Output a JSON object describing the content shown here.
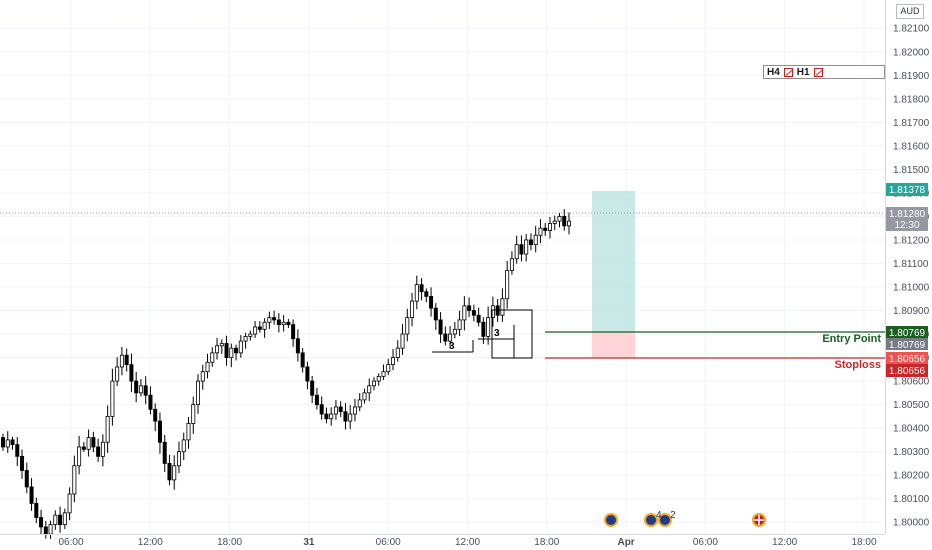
{
  "currency": "AUD",
  "timeframes": [
    "H4",
    "H1"
  ],
  "y_axis_ticks": [
    "1.82100",
    "1.82000",
    "1.81900",
    "1.81800",
    "1.81700",
    "1.81600",
    "1.81500",
    "1.81400",
    "1.81300",
    "1.81200",
    "1.81100",
    "1.81000",
    "1.80900",
    "1.80800",
    "1.80700",
    "1.80600",
    "1.80500",
    "1.80400",
    "1.80300",
    "1.80200",
    "1.80100",
    "1.80000"
  ],
  "x_axis_ticks": [
    "06:00",
    "12:00",
    "18:00",
    "31",
    "06:00",
    "12:00",
    "18:00",
    "Apr",
    "06:00",
    "12:00",
    "18:00"
  ],
  "price_tags": {
    "target": "1.81378",
    "current": "1.81280",
    "countdown": "12:30",
    "entry_a": "1.80769",
    "entry_b": "1.80769",
    "stop_a": "1.80656",
    "stop_b": "1.80656"
  },
  "annotations": {
    "entry_label": "Entry Point",
    "stop_label": "Stoploss",
    "box1_count": "3",
    "box2_count": "3",
    "event_count": "4",
    "event_count2": "2"
  },
  "colors": {
    "bull": "#ffffff",
    "bear": "#000000",
    "target_tag": "#26a69a",
    "current_tag": "#9598a1",
    "entry_line": "#1b5e20",
    "stop_line": "#c62828",
    "profit_zone": "#b2dfdb",
    "loss_zone": "#ffcdd2"
  },
  "chart_data": {
    "type": "candlestick",
    "ylim": [
      1.7995,
      1.8222
    ],
    "x_labels": [
      "06:00",
      "12:00",
      "18:00",
      "31",
      "06:00",
      "12:00",
      "18:00",
      "Apr",
      "06:00",
      "12:00",
      "18:00"
    ],
    "levels": {
      "target": 1.81378,
      "current": 1.8128,
      "entry": 1.80769,
      "stop": 1.80656
    },
    "closes": [
      1.8032,
      1.8035,
      1.8033,
      1.8028,
      1.8022,
      1.8015,
      1.8008,
      1.8002,
      1.7998,
      1.7995,
      1.7999,
      1.8003,
      1.7999,
      1.8004,
      1.8012,
      1.8024,
      1.8032,
      1.8031,
      1.8036,
      1.8032,
      1.8028,
      1.8034,
      1.8045,
      1.806,
      1.8066,
      1.8071,
      1.8067,
      1.806,
      1.8055,
      1.8058,
      1.8054,
      1.8048,
      1.8043,
      1.8034,
      1.8025,
      1.8018,
      1.8024,
      1.803,
      1.8035,
      1.8042,
      1.805,
      1.806,
      1.8064,
      1.8068,
      1.8072,
      1.8075,
      1.8076,
      1.807,
      1.8074,
      1.8072,
      1.8077,
      1.8079,
      1.808,
      1.8083,
      1.8082,
      1.8085,
      1.8087,
      1.8086,
      1.8084,
      1.8085,
      1.8084,
      1.8078,
      1.8072,
      1.8066,
      1.806,
      1.8054,
      1.805,
      1.8046,
      1.8044,
      1.8046,
      1.8049,
      1.8047,
      1.8043,
      1.8046,
      1.8049,
      1.8052,
      1.8055,
      1.8058,
      1.806,
      1.8062,
      1.8064,
      1.8067,
      1.807,
      1.8074,
      1.808,
      1.8087,
      1.8094,
      1.8101,
      1.8098,
      1.8096,
      1.8091,
      1.8086,
      1.808,
      1.8077,
      1.808,
      1.8082,
      1.8086,
      1.8092,
      1.809,
      1.8088,
      1.8085,
      1.8079,
      1.8087,
      1.8092,
      1.8088,
      1.8095,
      1.8107,
      1.8112,
      1.8118,
      1.8114,
      1.812,
      1.8118,
      1.8122,
      1.8125,
      1.8124,
      1.8127,
      1.8128,
      1.813,
      1.8126,
      1.8128
    ]
  }
}
